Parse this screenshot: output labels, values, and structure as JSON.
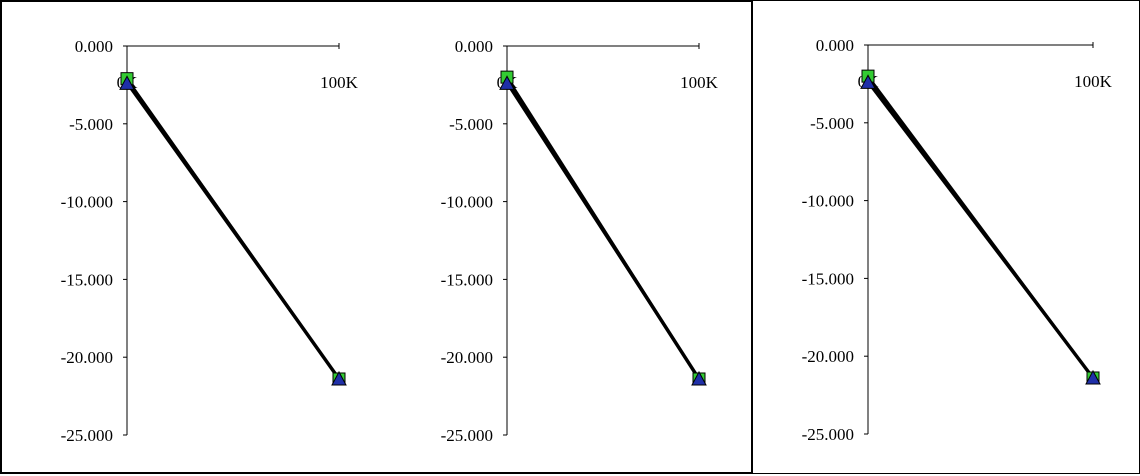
{
  "chart_data": [
    {
      "type": "line",
      "x_tick_labels": [
        "0K",
        "100K"
      ],
      "y_tick_labels": [
        "0.000",
        "-5.000",
        "-10.000",
        "-15.000",
        "-20.000",
        "-25.000"
      ],
      "xlim": [
        0,
        100000
      ],
      "ylim": [
        -25,
        0
      ],
      "x_axis_position": "top",
      "grid": false,
      "legend": "none",
      "series": [
        {
          "marker": "square",
          "color": "#33cc33",
          "points": [
            [
              0,
              -2.1
            ],
            [
              100000,
              -21.4
            ]
          ]
        },
        {
          "marker": "triangle",
          "color": "#1f2fa8",
          "points": [
            [
              0,
              -2.4
            ],
            [
              100000,
              -21.4
            ]
          ]
        },
        {
          "marker": "none",
          "color": "#000000",
          "points": [
            [
              0,
              -2.2
            ],
            [
              100000,
              -21.4
            ]
          ]
        }
      ]
    },
    {
      "type": "line",
      "x_tick_labels": [
        "0K",
        "100K"
      ],
      "y_tick_labels": [
        "0.000",
        "-5.000",
        "-10.000",
        "-15.000",
        "-20.000",
        "-25.000"
      ],
      "xlim": [
        0,
        100000
      ],
      "ylim": [
        -25,
        0
      ],
      "x_axis_position": "top",
      "grid": false,
      "legend": "none",
      "series": [
        {
          "marker": "square",
          "color": "#33cc33",
          "points": [
            [
              0,
              -2.0
            ],
            [
              100000,
              -21.4
            ]
          ]
        },
        {
          "marker": "triangle",
          "color": "#1f2fa8",
          "points": [
            [
              0,
              -2.4
            ],
            [
              100000,
              -21.4
            ]
          ]
        },
        {
          "marker": "none",
          "color": "#000000",
          "points": [
            [
              0,
              -2.2
            ],
            [
              100000,
              -21.4
            ]
          ]
        }
      ]
    },
    {
      "type": "line",
      "x_tick_labels": [
        "0K",
        "100K"
      ],
      "y_tick_labels": [
        "0.000",
        "-5.000",
        "-10.000",
        "-15.000",
        "-20.000",
        "-25.000"
      ],
      "xlim": [
        0,
        100000
      ],
      "ylim": [
        -25,
        0
      ],
      "x_axis_position": "top",
      "grid": false,
      "legend": "none",
      "series": [
        {
          "marker": "square",
          "color": "#33cc33",
          "points": [
            [
              0,
              -2.0
            ],
            [
              100000,
              -21.4
            ]
          ]
        },
        {
          "marker": "triangle",
          "color": "#1f2fa8",
          "points": [
            [
              0,
              -2.4
            ],
            [
              100000,
              -21.4
            ]
          ]
        },
        {
          "marker": "none",
          "color": "#000000",
          "points": [
            [
              0,
              -2.2
            ],
            [
              100000,
              -21.4
            ]
          ]
        }
      ]
    }
  ]
}
